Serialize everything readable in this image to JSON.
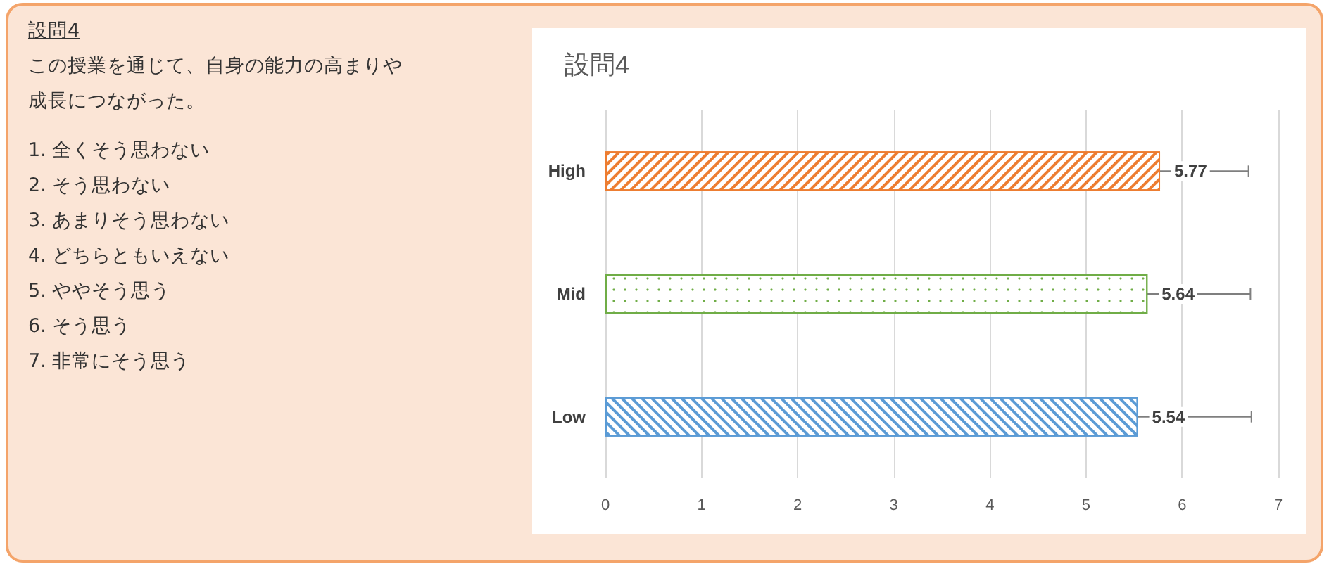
{
  "chart_data": [
    {
      "type": "other",
      "title": "設問4",
      "annotations": [
        "この授業を通じて、自身の能力の高まりや",
        "成長につながった。",
        "1. 全くそう思わない",
        "2. そう思わない",
        "3. あまりそう思わない",
        "4. どちらともいえない",
        "5. ややそう思う",
        "6. そう思う",
        "7. 非常にそう思う"
      ]
    },
    {
      "type": "bar",
      "orientation": "horizontal",
      "title": "設問4",
      "categories": [
        "High",
        "Mid",
        "Low"
      ],
      "values": [
        5.77,
        5.64,
        5.54
      ],
      "colors": [
        "#ed7d31",
        "#70ad47",
        "#5b9bd5"
      ],
      "errors": [
        0.92,
        1.07,
        1.18
      ],
      "xlim": [
        0,
        7
      ],
      "xticks": [
        0,
        1,
        2,
        3,
        4,
        5,
        6,
        7
      ],
      "grid": "x",
      "data_labels": true
    }
  ]
}
